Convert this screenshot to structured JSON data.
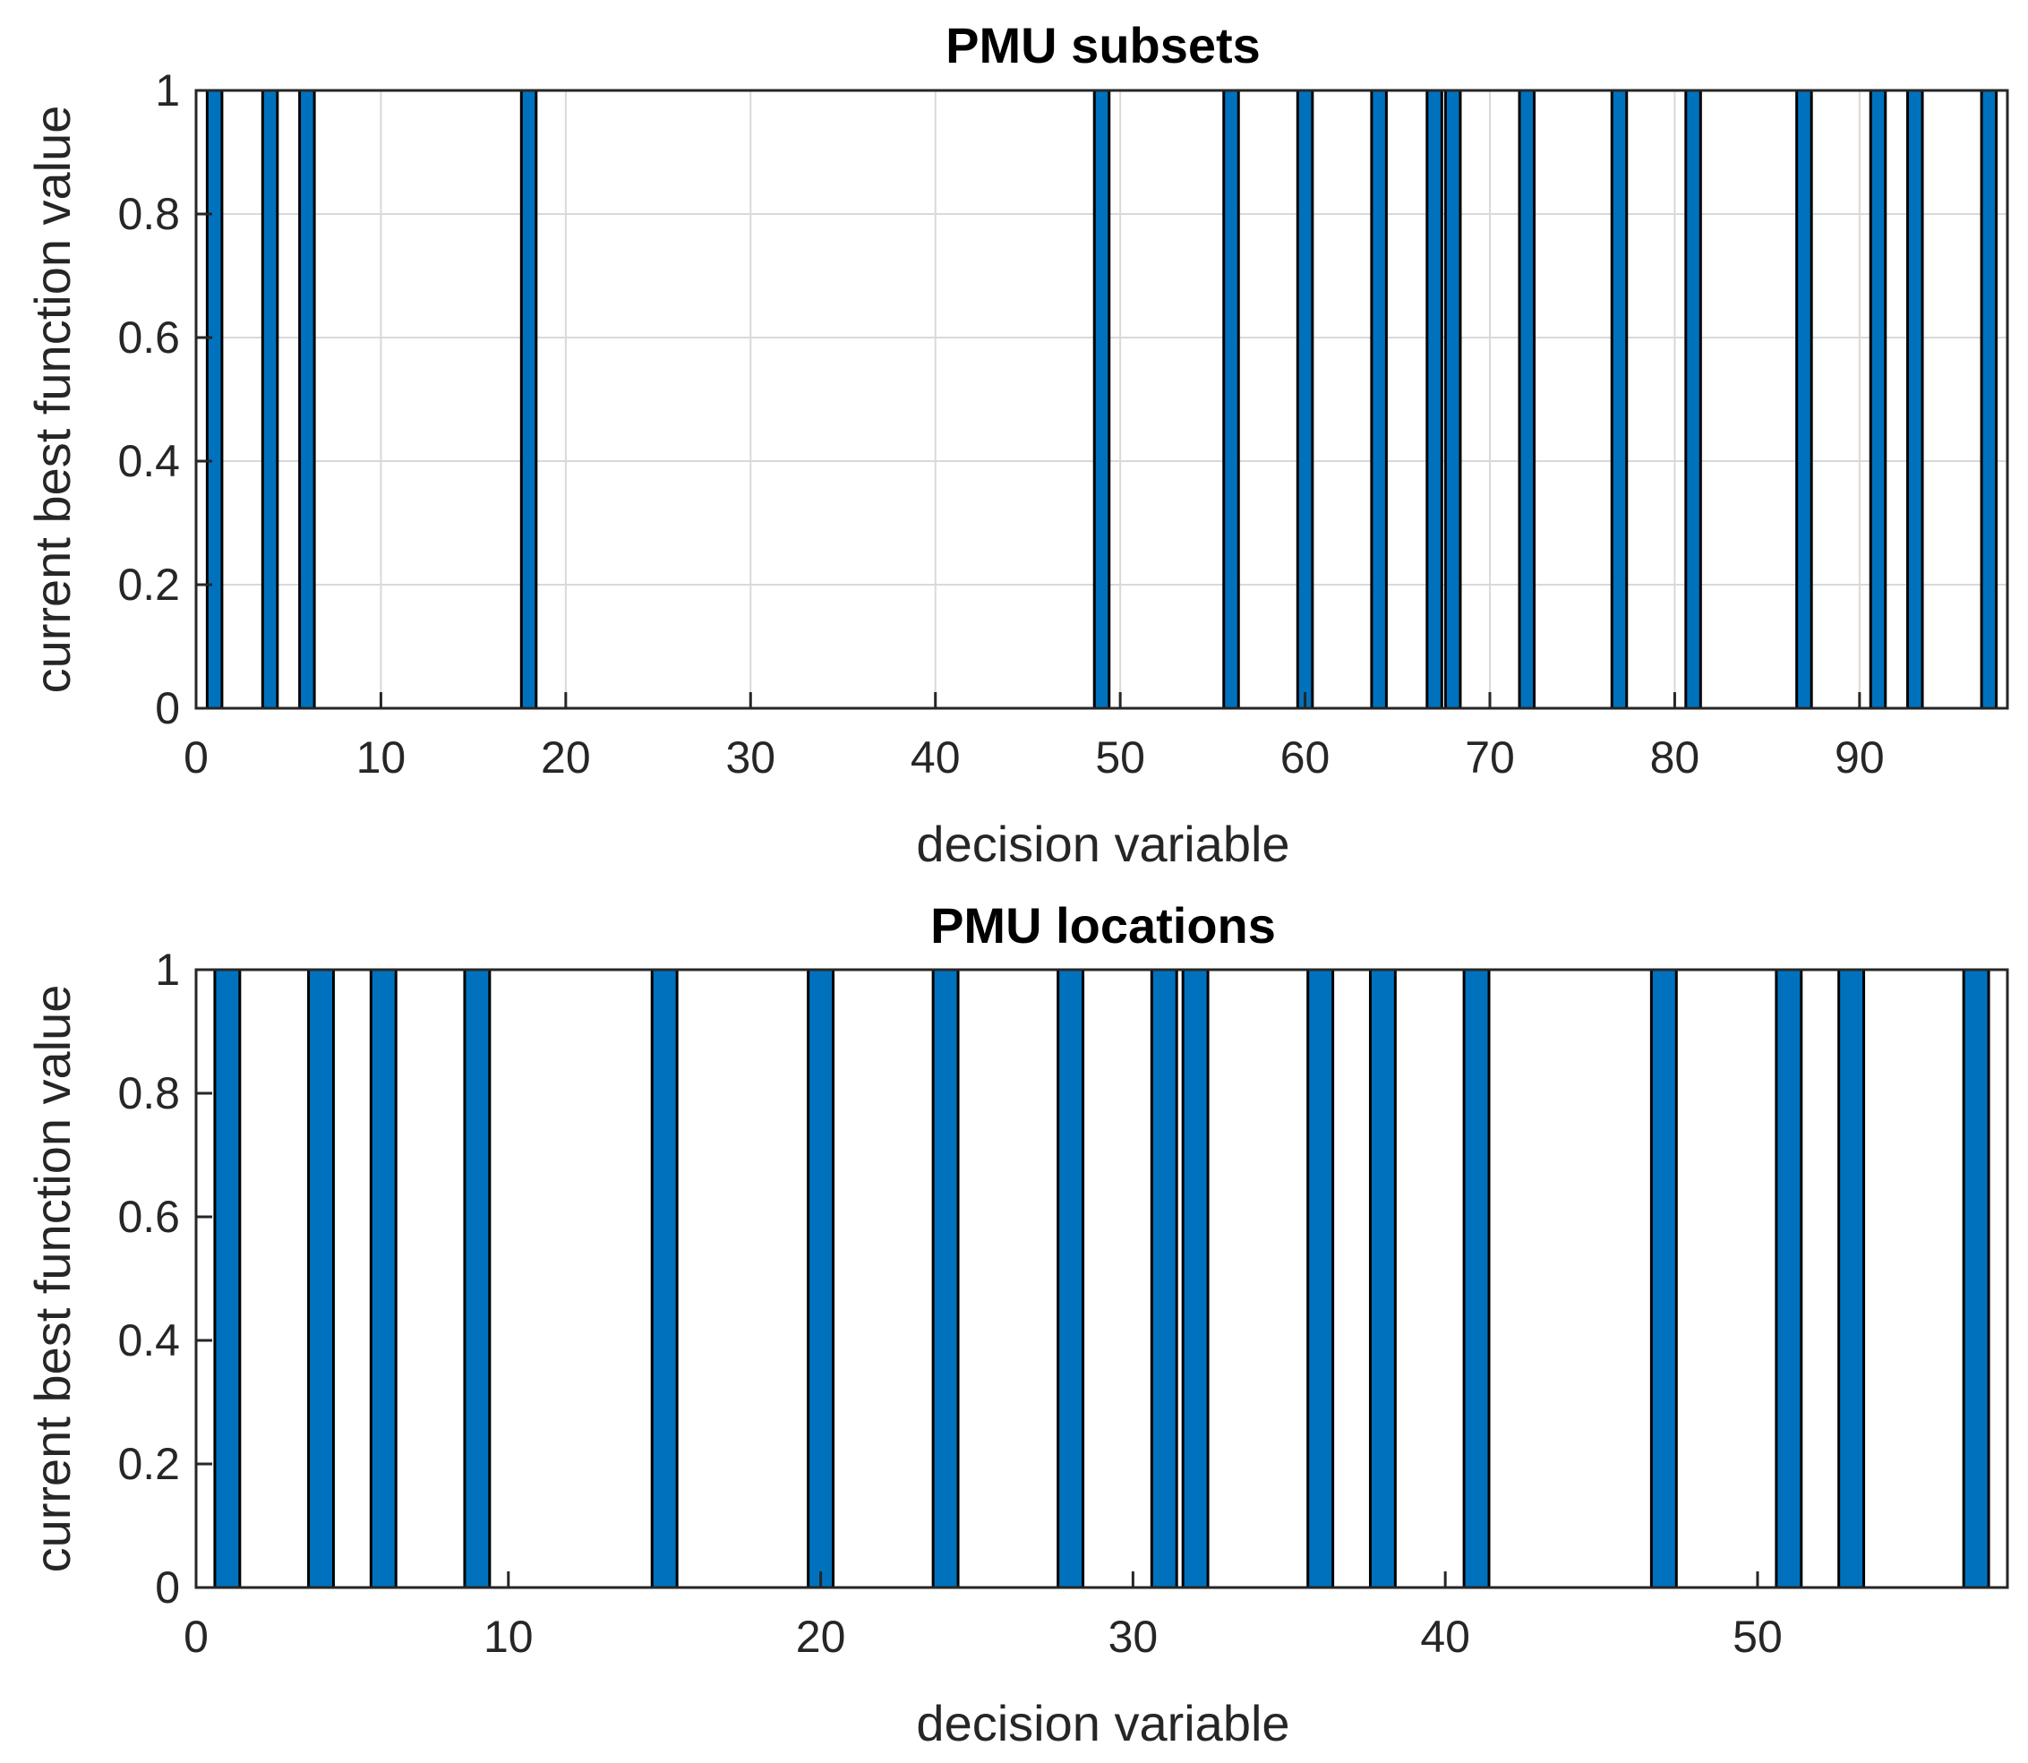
{
  "colors": {
    "bar": "#0072BD",
    "grid": "#d9d9d9",
    "axis": "#262626"
  },
  "chart_data": [
    {
      "type": "bar",
      "title": "PMU subsets",
      "xlabel": "decision variable",
      "ylabel": "current best function value",
      "xlim": [
        0,
        98
      ],
      "ylim": [
        0,
        1
      ],
      "grid": true,
      "xticks": [
        0,
        10,
        20,
        30,
        40,
        50,
        60,
        70,
        80,
        90
      ],
      "yticks": [
        0,
        0.2,
        0.4,
        0.6,
        0.8,
        1
      ],
      "bar_width": 0.8,
      "x": [
        1,
        4,
        6,
        18,
        49,
        56,
        60,
        64,
        67,
        68,
        72,
        77,
        81,
        87,
        91,
        93,
        97
      ],
      "values": [
        1,
        1,
        1,
        1,
        1,
        1,
        1,
        1,
        1,
        1,
        1,
        1,
        1,
        1,
        1,
        1,
        1
      ]
    },
    {
      "type": "bar",
      "title": "PMU locations",
      "xlabel": "decision variable",
      "ylabel": "current best function value",
      "xlim": [
        0,
        58
      ],
      "ylim": [
        0,
        1
      ],
      "grid": false,
      "xticks": [
        0,
        10,
        20,
        30,
        40,
        50
      ],
      "yticks": [
        0,
        0.2,
        0.4,
        0.6,
        0.8,
        1
      ],
      "bar_width": 0.8,
      "x": [
        1,
        4,
        6,
        9,
        15,
        20,
        24,
        28,
        31,
        32,
        36,
        38,
        41,
        47,
        51,
        53,
        57
      ],
      "values": [
        1,
        1,
        1,
        1,
        1,
        1,
        1,
        1,
        1,
        1,
        1,
        1,
        1,
        1,
        1,
        1,
        1
      ]
    }
  ]
}
